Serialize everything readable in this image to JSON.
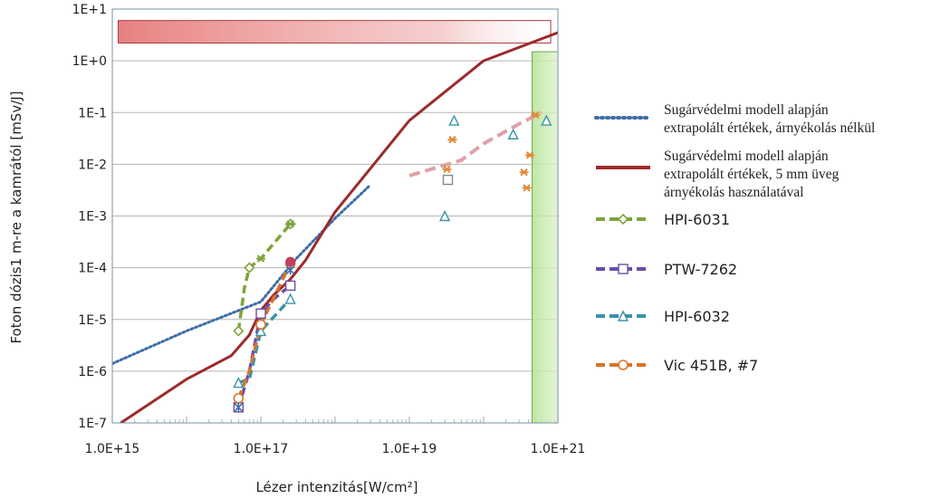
{
  "chart_data": {
    "type": "line",
    "xlabel": "Lézer intenzitás[W/cm²]",
    "ylabel": "Foton dózis1 m-re a kamrától [mSv/J]",
    "x_scale": "log",
    "y_scale": "log",
    "xlim": [
      1000000000000000.0,
      1e+21
    ],
    "ylim": [
      1e-07,
      10
    ],
    "x_ticks": [
      {
        "value": 1000000000000000.0,
        "label": "1.0E+15"
      },
      {
        "value": 1e+17,
        "label": "1.0E+17"
      },
      {
        "value": 1e+19,
        "label": "1.0E+19"
      },
      {
        "value": 1e+21,
        "label": "1.0E+21"
      }
    ],
    "y_ticks": [
      {
        "value": 10,
        "label": "1E+1"
      },
      {
        "value": 1,
        "label": "1E+0"
      },
      {
        "value": 0.1,
        "label": "1E-1"
      },
      {
        "value": 0.01,
        "label": "1E-2"
      },
      {
        "value": 0.001,
        "label": "1E-3"
      },
      {
        "value": 0.0001,
        "label": "1E-4"
      },
      {
        "value": 1e-05,
        "label": "1E-5"
      },
      {
        "value": 1e-06,
        "label": "1E-6"
      },
      {
        "value": 1e-07,
        "label": "1E-7"
      }
    ],
    "grid": "horizontal",
    "legend_position": "right",
    "shaded_regions": [
      {
        "kind": "red-band",
        "color": "#e06060",
        "x_range": [
          1200000000000000.0,
          8e+20
        ],
        "y_range": [
          2.2,
          6.0
        ]
      },
      {
        "kind": "green-band",
        "color": "#8ed060",
        "x_range": [
          4.5e+20,
          1e+21
        ],
        "y_range": [
          1e-07,
          1.5
        ]
      }
    ],
    "series": [
      {
        "name": "Sugárvédelmi modell alapján extrapolált értékek, árnyékolás nélkül",
        "color": "#3e6da8",
        "style": "dotted",
        "marker": "none",
        "x": [
          1000000000000000.0,
          1e+16,
          1e+17,
          3e+17,
          1e+18,
          3e+18
        ],
        "y": [
          1.4e-06,
          6e-06,
          2.2e-05,
          0.00015,
          0.0009,
          0.004
        ]
      },
      {
        "name": "Sugárvédelmi modell alapján extrapolált értékek, 5 mm üveg árnyékolás használatával",
        "color": "#9b2b2b",
        "style": "solid",
        "marker": "none",
        "x": [
          1300000000000000.0,
          1e+16,
          4e+16,
          7e+16,
          1e+17,
          1.5e+17,
          2.5e+17,
          4e+17,
          1e+18,
          1e+19,
          1e+20,
          1e+21
        ],
        "y": [
          1e-07,
          7e-07,
          2e-06,
          5e-06,
          1.5e-05,
          3e-05,
          6e-05,
          0.00014,
          0.0012,
          0.07,
          1.0,
          3.5
        ]
      },
      {
        "name": "HPI-6031",
        "color": "#7fa43a",
        "style": "dashed",
        "marker": "diamond",
        "x": [
          5e+16,
          6e+16,
          7e+16,
          1e+17,
          2.5e+17
        ],
        "y": [
          6e-06,
          4e-05,
          0.0001,
          0.00015,
          0.0007
        ]
      },
      {
        "name": "PTW-7262",
        "color": "#6a4ea6",
        "style": "dashed",
        "marker": "square",
        "x": [
          5e+16,
          7e+16,
          1e+17,
          1.5e+17,
          2.5e+17
        ],
        "y": [
          2e-07,
          1e-06,
          1.3e-05,
          2.5e-05,
          4.5e-05
        ]
      },
      {
        "name": "HPI-6032",
        "color": "#3a93a8",
        "style": "dashed",
        "marker": "triangle",
        "x": [
          5e+16,
          7e+16,
          1e+17,
          2.5e+17
        ],
        "y": [
          6e-07,
          7e-07,
          6e-06,
          2.5e-05
        ]
      },
      {
        "name": "Vic 451B, #7",
        "color": "#d8742a",
        "style": "dashed",
        "marker": "circle",
        "x": [
          5e+16,
          7e+16,
          1e+17,
          2.5e+17
        ],
        "y": [
          3e-07,
          1e-06,
          8e-06,
          0.00012
        ]
      }
    ],
    "high_intensity_points": {
      "pink_dash": {
        "color": "#e0a0a8",
        "x": [
          1e+19,
          5e+19,
          1e+20,
          3e+20,
          6e+20
        ],
        "y": [
          0.006,
          0.012,
          0.025,
          0.06,
          0.1
        ]
      },
      "orange_asterisks": {
        "color": "#e08a3a",
        "x": [
          3.2e+19,
          3.8e+19,
          3.5e+20,
          3.8e+20,
          4.2e+20,
          5e+20
        ],
        "y": [
          0.008,
          0.03,
          0.007,
          0.0035,
          0.015,
          0.09
        ]
      },
      "teal_triangles": {
        "color": "#3a93a8",
        "x": [
          3e+19,
          4e+19,
          2.5e+20,
          7e+20
        ],
        "y": [
          0.001,
          0.07,
          0.038,
          0.07
        ]
      },
      "squares": {
        "color": "#888888",
        "x": [
          3.3e+19
        ],
        "y": [
          0.005
        ]
      }
    }
  },
  "legend": {
    "entries": [
      {
        "lines": [
          "Sugárvédelmi modell alapján",
          "extrapolált értékek, árnyékolás nélkül"
        ],
        "color": "#3e6da8",
        "style": "dotted",
        "marker": "none",
        "font": "serif"
      },
      {
        "lines": [
          "Sugárvédelmi modell alapján",
          "extrapolált értékek, 5 mm üveg",
          "árnyékolás használatával"
        ],
        "color": "#9b2b2b",
        "style": "solid",
        "marker": "none",
        "font": "serif"
      },
      {
        "lines": [
          "HPI-6031"
        ],
        "color": "#7fa43a",
        "style": "dashed",
        "marker": "diamond",
        "font": "sans"
      },
      {
        "lines": [
          "PTW-7262"
        ],
        "color": "#6a4ea6",
        "style": "dashed",
        "marker": "square",
        "font": "sans"
      },
      {
        "lines": [
          "HPI-6032"
        ],
        "color": "#3a93a8",
        "style": "dashed",
        "marker": "triangle",
        "font": "sans"
      },
      {
        "lines": [
          "Vic 451B, #7"
        ],
        "color": "#d8742a",
        "style": "dashed",
        "marker": "circle",
        "font": "sans"
      }
    ]
  }
}
